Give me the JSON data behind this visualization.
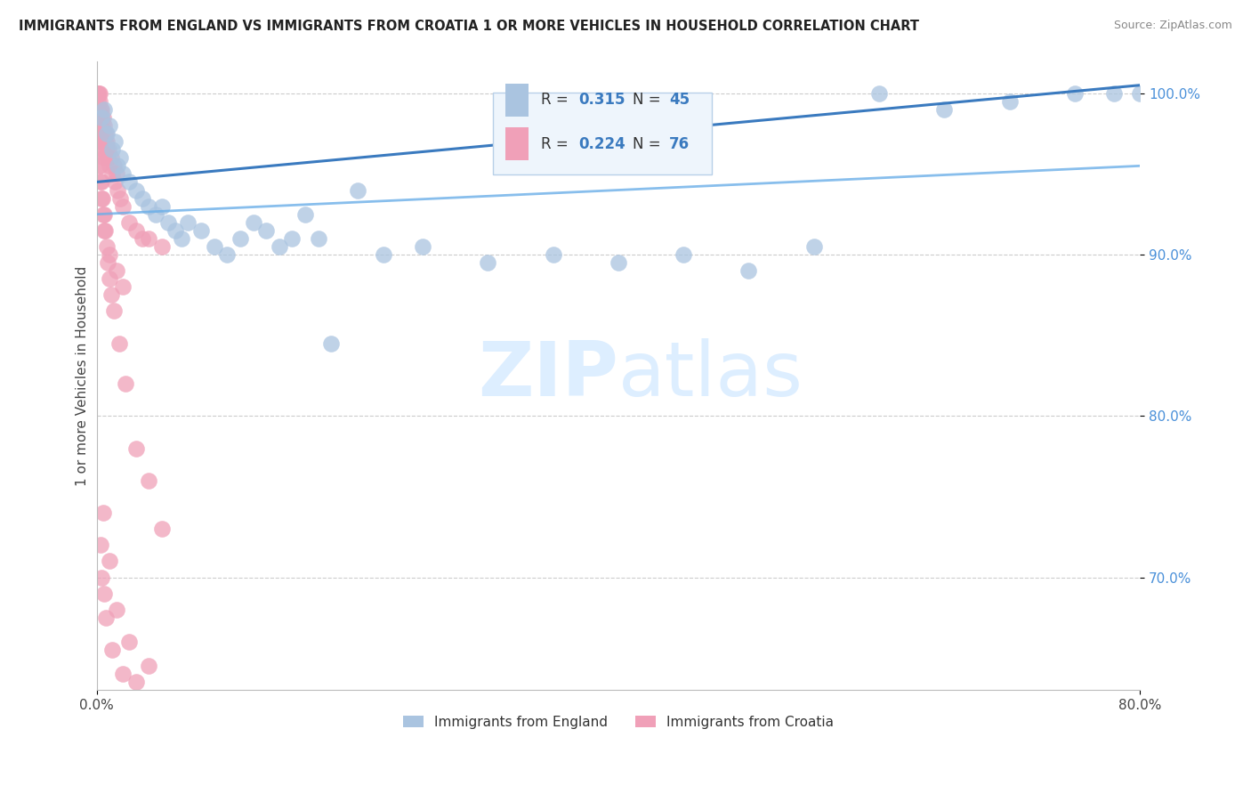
{
  "title": "IMMIGRANTS FROM ENGLAND VS IMMIGRANTS FROM CROATIA 1 OR MORE VEHICLES IN HOUSEHOLD CORRELATION CHART",
  "source": "Source: ZipAtlas.com",
  "ylabel": "1 or more Vehicles in Household",
  "xlim": [
    0.0,
    80.0
  ],
  "ylim": [
    63.0,
    102.0
  ],
  "yticks": [
    70.0,
    80.0,
    90.0,
    100.0
  ],
  "ytick_labels": [
    "70.0%",
    "80.0%",
    "90.0%",
    "100.0%"
  ],
  "xtick_labels": [
    "0.0%",
    "80.0%"
  ],
  "england_R": 0.315,
  "england_N": 45,
  "croatia_R": 0.224,
  "croatia_N": 76,
  "england_color": "#aac4e0",
  "croatia_color": "#f0a0b8",
  "trend_line_color": "#3a7abf",
  "croatia_trend_color": "#6aaee8",
  "title_color": "#222222",
  "source_color": "#888888",
  "tick_color_y": "#4a90d9",
  "tick_color_x": "#444444",
  "grid_color": "#cccccc",
  "watermark_color": "#ddeeff",
  "legend_bg": "#eef5fc",
  "legend_border": "#b8d0e8",
  "legend_text_color": "#3a7abf",
  "eng_x": [
    0.4,
    0.6,
    0.8,
    1.0,
    1.2,
    1.4,
    1.6,
    1.8,
    2.0,
    2.5,
    3.0,
    3.5,
    4.0,
    4.5,
    5.0,
    5.5,
    6.0,
    6.5,
    7.0,
    8.0,
    9.0,
    10.0,
    11.0,
    12.0,
    13.0,
    14.0,
    15.0,
    16.0,
    17.0,
    18.0,
    20.0,
    22.0,
    25.0,
    30.0,
    35.0,
    40.0,
    45.0,
    50.0,
    55.0,
    60.0,
    65.0,
    70.0,
    75.0,
    78.0,
    80.0
  ],
  "eng_y": [
    98.5,
    99.0,
    97.5,
    98.0,
    96.5,
    97.0,
    95.5,
    96.0,
    95.0,
    94.5,
    94.0,
    93.5,
    93.0,
    92.5,
    93.0,
    92.0,
    91.5,
    91.0,
    92.0,
    91.5,
    90.5,
    90.0,
    91.0,
    92.0,
    91.5,
    90.5,
    91.0,
    92.5,
    91.0,
    84.5,
    94.0,
    90.0,
    90.5,
    89.5,
    90.0,
    89.5,
    90.0,
    89.0,
    90.5,
    100.0,
    99.0,
    99.5,
    100.0,
    100.0,
    100.0
  ],
  "cro_x": [
    0.05,
    0.1,
    0.1,
    0.15,
    0.15,
    0.2,
    0.2,
    0.25,
    0.25,
    0.3,
    0.3,
    0.35,
    0.4,
    0.4,
    0.45,
    0.5,
    0.5,
    0.55,
    0.6,
    0.6,
    0.65,
    0.7,
    0.75,
    0.8,
    0.85,
    0.9,
    1.0,
    1.1,
    1.2,
    1.3,
    1.4,
    1.5,
    1.6,
    1.8,
    2.0,
    2.5,
    3.0,
    3.5,
    4.0,
    5.0,
    0.2,
    0.3,
    0.4,
    0.5,
    0.6,
    1.0,
    1.5,
    2.0,
    0.15,
    0.25,
    0.35,
    0.45,
    0.55,
    0.65,
    0.75,
    0.85,
    0.95,
    1.1,
    1.3,
    1.7,
    2.2,
    3.0,
    4.0,
    5.0,
    0.3,
    0.4,
    0.6,
    0.7,
    1.2,
    2.0,
    3.0,
    0.5,
    1.0,
    1.5,
    2.5,
    4.0
  ],
  "cro_y": [
    100.0,
    100.0,
    99.5,
    100.0,
    99.0,
    100.0,
    98.5,
    99.5,
    98.0,
    99.0,
    97.5,
    98.5,
    99.0,
    97.0,
    98.0,
    98.5,
    96.5,
    97.5,
    98.0,
    96.0,
    97.0,
    97.5,
    96.5,
    97.0,
    96.0,
    96.5,
    95.5,
    96.0,
    95.0,
    95.5,
    94.5,
    95.0,
    94.0,
    93.5,
    93.0,
    92.0,
    91.5,
    91.0,
    91.0,
    90.5,
    95.5,
    94.5,
    93.5,
    92.5,
    91.5,
    90.0,
    89.0,
    88.0,
    96.5,
    95.5,
    94.5,
    93.5,
    92.5,
    91.5,
    90.5,
    89.5,
    88.5,
    87.5,
    86.5,
    84.5,
    82.0,
    78.0,
    76.0,
    73.0,
    72.0,
    70.0,
    69.0,
    67.5,
    65.5,
    64.0,
    63.5,
    74.0,
    71.0,
    68.0,
    66.0,
    64.5
  ]
}
